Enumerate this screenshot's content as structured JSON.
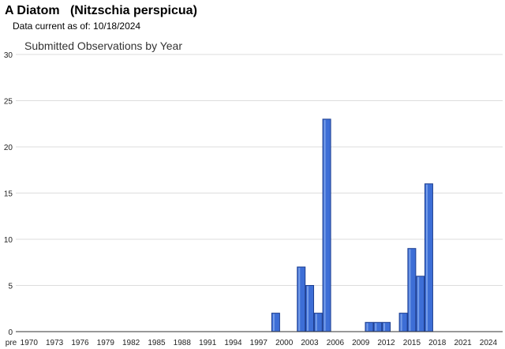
{
  "header": {
    "species_title": "A Diatom   (Nitzschia perspicua)",
    "data_current": "Data current as of: 10/18/2024"
  },
  "chart_data": {
    "type": "bar",
    "title": "Submitted Observations by Year",
    "xlabel": "",
    "ylabel": "",
    "ylim": [
      0,
      30
    ],
    "yticks": [
      0,
      5,
      10,
      15,
      20,
      25,
      30
    ],
    "grid": true,
    "legend": "none",
    "bar_color": "#3d6ed6",
    "bar_edge_color": "#1f3f8f",
    "categories": [
      "pre 1970",
      "1970",
      "1971",
      "1972",
      "1973",
      "1974",
      "1975",
      "1976",
      "1977",
      "1978",
      "1979",
      "1980",
      "1981",
      "1982",
      "1983",
      "1984",
      "1985",
      "1986",
      "1987",
      "1988",
      "1989",
      "1990",
      "1991",
      "1992",
      "1993",
      "1994",
      "1995",
      "1996",
      "1997",
      "1998",
      "1999",
      "2000",
      "2001",
      "2002",
      "2003",
      "2004",
      "2005",
      "2006",
      "2007",
      "2008",
      "2009",
      "2010",
      "2011",
      "2012",
      "2013",
      "2014",
      "2015",
      "2016",
      "2017",
      "2018",
      "2019",
      "2020",
      "2021",
      "2022",
      "2023",
      "2024"
    ],
    "values": [
      0,
      0,
      0,
      0,
      0,
      0,
      0,
      0,
      0,
      0,
      0,
      0,
      0,
      0,
      0,
      0,
      0,
      0,
      0,
      0,
      0,
      0,
      0,
      0,
      0,
      0,
      0,
      0,
      0,
      0,
      2,
      0,
      0,
      7,
      5,
      2,
      23,
      0,
      0,
      0,
      0,
      1,
      1,
      1,
      0,
      2,
      9,
      6,
      16,
      0,
      0,
      0,
      0,
      0,
      0,
      0
    ],
    "xtick_labels": [
      "pre",
      "1970",
      "1973",
      "1976",
      "1979",
      "1982",
      "1985",
      "1988",
      "1991",
      "1994",
      "1997",
      "2000",
      "2003",
      "2006",
      "2009",
      "2012",
      "2015",
      "2018",
      "2021",
      "2024"
    ]
  }
}
